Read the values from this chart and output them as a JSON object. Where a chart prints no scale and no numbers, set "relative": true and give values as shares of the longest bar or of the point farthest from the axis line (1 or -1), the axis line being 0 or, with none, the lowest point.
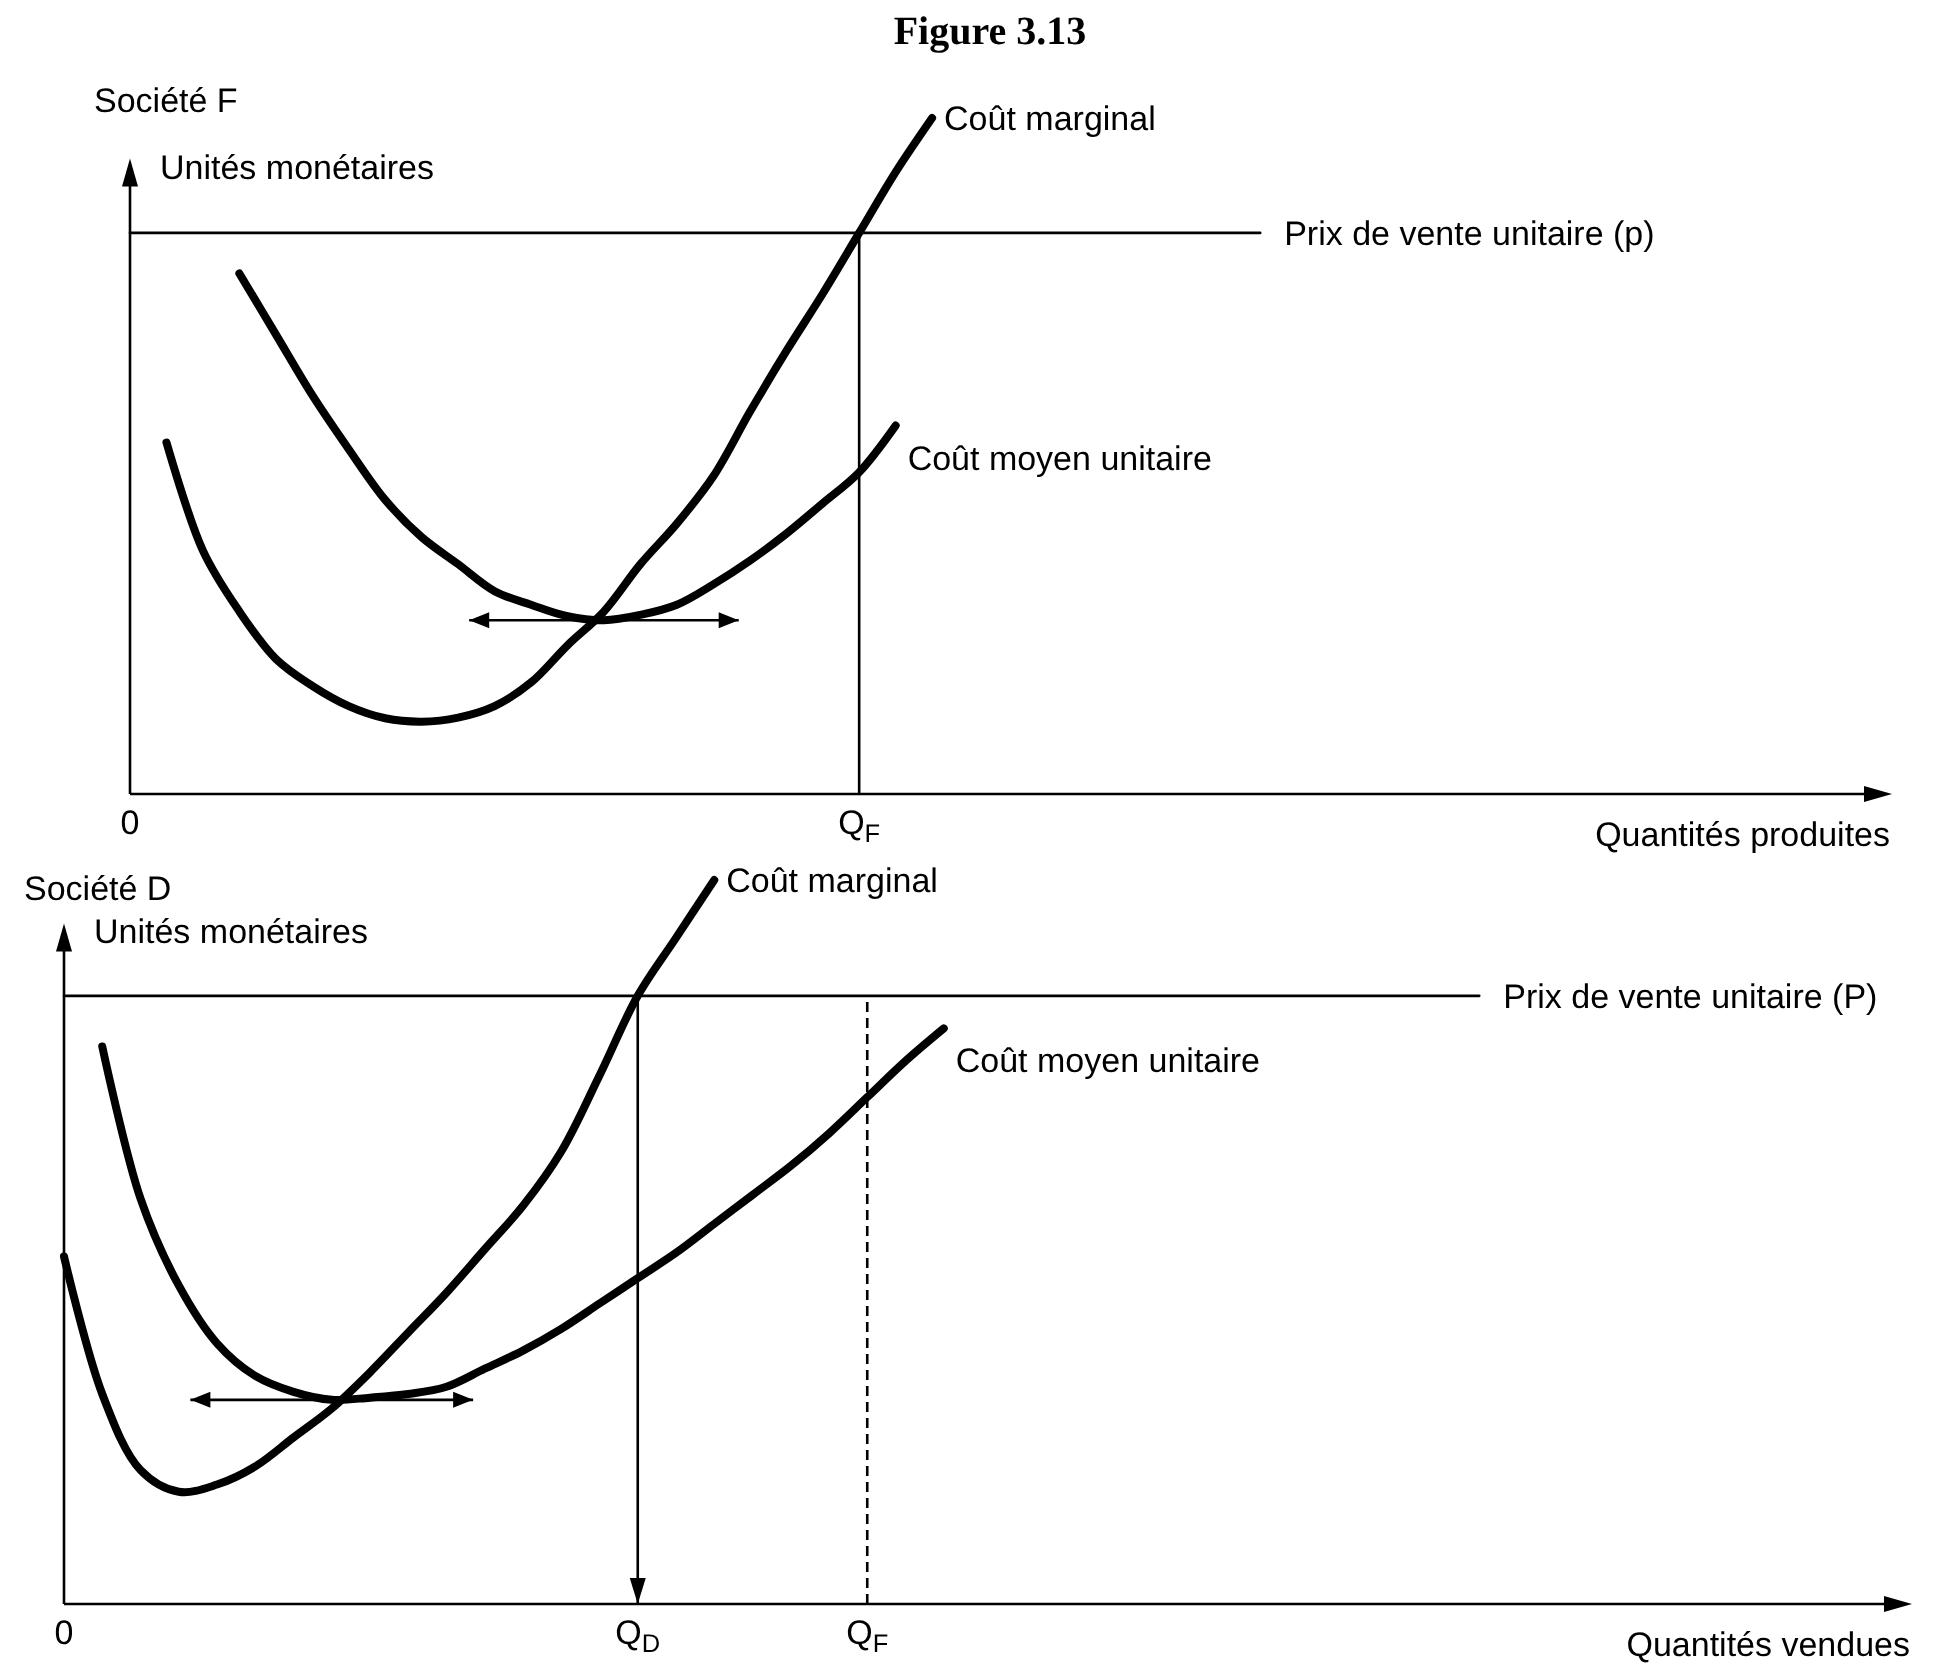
{
  "chart_data": [
    {
      "type": "line",
      "title": "Figure 3.13",
      "subtitle": "Société F",
      "ylabel": "Unités monétaires",
      "xlabel": "Quantités produites",
      "relative": true,
      "tick_labels": "x",
      "categories": [
        "0",
        null,
        null,
        null,
        null,
        null,
        null,
        null,
        null,
        null,
        null,
        null,
        null,
        null,
        null,
        null,
        null,
        null,
        null,
        null,
        "Q$_{F}$",
        null,
        null,
        null,
        null,
        null,
        null,
        null,
        null,
        null,
        null,
        null,
        null,
        null,
        null,
        null,
        null,
        null,
        null,
        null,
        null,
        null,
        null,
        null,
        null,
        null,
        null,
        null,
        null
      ],
      "ref_lines": [
        {
          "axis": "x",
          "value": "Q$_{F}$"
        }
      ],
      "series": [
        {
          "name": "Coût marginal",
          "color": "#000000",
          "values": [
            null,
            0.52,
            0.36,
            0.27,
            0.2,
            0.16,
            0.13,
            0.112,
            0.107,
            0.113,
            0.13,
            0.165,
            0.22,
            0.27,
            0.34,
            0.4,
            0.47,
            0.565,
            0.655,
            0.74,
            0.83,
            0.92,
            1.0,
            null,
            null,
            null,
            null,
            null,
            null,
            null,
            null,
            null,
            null,
            null,
            null,
            null,
            null,
            null,
            null,
            null,
            null,
            null,
            null,
            null,
            null,
            null,
            null,
            null,
            null
          ]
        },
        {
          "name": "Coût moyen unitaire",
          "color": "#000000",
          "values": [
            null,
            null,
            null,
            0.77,
            0.68,
            0.59,
            0.51,
            0.435,
            0.38,
            0.34,
            0.3,
            0.28,
            0.263,
            0.257,
            0.265,
            0.28,
            0.31,
            0.345,
            0.385,
            0.43,
            0.476,
            0.545,
            null,
            null,
            null,
            null,
            null,
            null,
            null,
            null,
            null,
            null,
            null,
            null,
            null,
            null,
            null,
            null,
            null,
            null,
            null,
            null,
            null,
            null,
            null,
            null,
            null,
            null,
            null
          ]
        },
        {
          "name": "Prix de vente unitaire (p)",
          "color": "#000000",
          "values": [
            0.83,
            0.83,
            0.83,
            0.83,
            0.83,
            0.83,
            0.83,
            0.83,
            0.83,
            0.83,
            0.83,
            0.83,
            0.83,
            0.83,
            0.83,
            0.83,
            0.83,
            0.83,
            0.83,
            0.83,
            0.83,
            0.83,
            0.83,
            0.83,
            0.83,
            0.83,
            0.83,
            0.83,
            0.83,
            0.83,
            0.83,
            0.83,
            null,
            null,
            null,
            null,
            null,
            null,
            null,
            null,
            null,
            null,
            null,
            null,
            null,
            null,
            null,
            null,
            null
          ]
        }
      ]
    },
    {
      "type": "line",
      "subtitle": "Société D",
      "ylabel": "Unités monétaires",
      "xlabel": "Quantités vendues",
      "relative": true,
      "tick_labels": "x",
      "categories": [
        "0",
        null,
        null,
        null,
        null,
        null,
        null,
        null,
        null,
        null,
        null,
        null,
        null,
        null,
        null,
        "Q$_{D}$",
        null,
        null,
        null,
        null,
        null,
        "Q$_{F}$",
        null,
        null,
        null,
        null,
        null,
        null,
        null,
        null,
        null,
        null,
        null,
        null,
        null,
        null,
        null,
        null,
        null,
        null,
        null,
        null,
        null,
        null,
        null,
        null,
        null,
        null,
        null
      ],
      "ref_lines": [
        {
          "axis": "x",
          "value": "Q$_{D}$",
          "line_style": "solid"
        },
        {
          "axis": "x",
          "value": "Q$_{F}$",
          "line_style": "dashed"
        }
      ],
      "series": [
        {
          "name": "Coût marginal",
          "color": "#000000",
          "values": [
            0.48,
            0.29,
            0.185,
            0.155,
            0.165,
            0.19,
            0.23,
            0.27,
            0.32,
            0.375,
            0.43,
            0.49,
            0.55,
            0.625,
            0.73,
            0.84,
            0.92,
            1.0,
            null,
            null,
            null,
            null,
            null,
            null,
            null,
            null,
            null,
            null,
            null,
            null,
            null,
            null,
            null,
            null,
            null,
            null,
            null,
            null,
            null,
            null,
            null,
            null,
            null,
            null,
            null,
            null,
            null,
            null,
            null
          ]
        },
        {
          "name": "Coût moyen unitaire",
          "color": "#000000",
          "values": [
            null,
            0.77,
            0.56,
            0.44,
            0.36,
            0.315,
            0.293,
            0.282,
            0.285,
            0.29,
            0.3,
            0.325,
            0.35,
            0.38,
            0.415,
            0.45,
            0.485,
            0.525,
            0.565,
            0.605,
            0.65,
            0.7,
            0.75,
            0.795,
            null,
            null,
            null,
            null,
            null,
            null,
            null,
            null,
            null,
            null,
            null,
            null,
            null,
            null,
            null,
            null,
            null,
            null,
            null,
            null,
            null,
            null,
            null,
            null,
            null
          ]
        },
        {
          "name": "Prix de vente unitaire (P)",
          "color": "#000000",
          "values": [
            0.84,
            0.84,
            0.84,
            0.84,
            0.84,
            0.84,
            0.84,
            0.84,
            0.84,
            0.84,
            0.84,
            0.84,
            0.84,
            0.84,
            0.84,
            0.84,
            0.84,
            0.84,
            0.84,
            0.84,
            0.84,
            0.84,
            0.84,
            0.84,
            0.84,
            0.84,
            0.84,
            0.84,
            0.84,
            0.84,
            0.84,
            0.84,
            0.84,
            0.84,
            0.84,
            0.84,
            0.84,
            0.84,
            null,
            null,
            null,
            null,
            null,
            null,
            null,
            null,
            null,
            null,
            null
          ]
        }
      ]
    }
  ]
}
